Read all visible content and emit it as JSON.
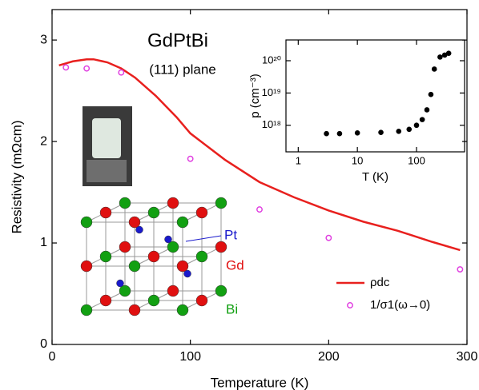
{
  "chart_data": [
    {
      "type": "line",
      "xlabel": "Temperature (K)",
      "ylabel": "Resistivity (mΩcm)",
      "annotations": [
        "GdPtBi",
        "(111) plane",
        "Pt",
        "Gd",
        "Bi"
      ],
      "xlim": [
        0,
        300
      ],
      "ylim": [
        0,
        3.3
      ],
      "xticks": [
        0,
        100,
        200,
        300
      ],
      "yticks": [
        0,
        1,
        2,
        3
      ],
      "legend": "lower right",
      "series": [
        {
          "name": "ρdc",
          "color": "#e8201e",
          "mode": "line",
          "x": [
            5,
            10,
            15,
            20,
            25,
            30,
            40,
            50,
            60,
            75,
            90,
            100,
            125,
            150,
            175,
            200,
            225,
            250,
            275,
            295
          ],
          "values": [
            2.75,
            2.77,
            2.79,
            2.8,
            2.81,
            2.81,
            2.78,
            2.72,
            2.63,
            2.45,
            2.24,
            2.08,
            1.82,
            1.6,
            1.45,
            1.32,
            1.21,
            1.12,
            1.01,
            0.93
          ]
        },
        {
          "name": "1/σ1(ω→0)",
          "color": "#e040e0",
          "mode": "markers",
          "x": [
            10,
            25,
            50,
            100,
            150,
            200,
            295
          ],
          "values": [
            2.73,
            2.72,
            2.68,
            1.83,
            1.33,
            1.05,
            0.74
          ]
        }
      ]
    },
    {
      "type": "scatter",
      "log_x": true,
      "log_y": true,
      "xlabel": "T (K)",
      "ylabel": "p (cm⁻³)",
      "xlim": [
        0.62,
        650
      ],
      "ylim": [
        1.5e+17,
        4.4e+20
      ],
      "xticks": [
        1,
        10,
        100
      ],
      "yticks": [
        {
          "value": 1e+18,
          "label": "10¹⁸"
        },
        {
          "value": 1e+19,
          "label": "10¹⁹"
        },
        {
          "value": 1e+20,
          "label": "10²⁰"
        }
      ],
      "color": "#000000",
      "x": [
        3,
        5,
        10,
        25,
        50,
        75,
        100,
        125,
        150,
        175,
        200,
        250,
        300,
        350
      ],
      "values": [
        5.5e+17,
        5.5e+17,
        5.8e+17,
        6e+17,
        6.5e+17,
        7.5e+17,
        1e+18,
        1.5e+18,
        3e+18,
        9e+18,
        5.5e+19,
        1.3e+20,
        1.5e+20,
        1.7e+20
      ]
    }
  ]
}
